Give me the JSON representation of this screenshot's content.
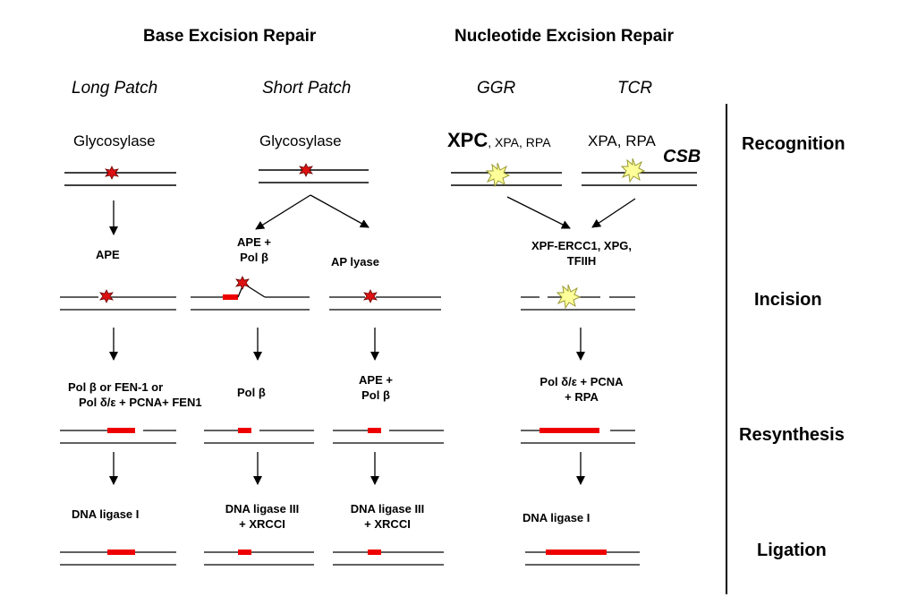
{
  "headers": {
    "ber": "Base Excision Repair",
    "ner": "Nucleotide Excision Repair"
  },
  "pathways": {
    "long_patch": "Long Patch",
    "short_patch": "Short Patch",
    "ggr": "GGR",
    "tcr": "TCR"
  },
  "recognition": {
    "glycosylase_long": "Glycosylase",
    "glycosylase_short": "Glycosylase",
    "ggr_xpc": "XPC",
    "ggr_rest": ", XPA, RPA",
    "tcr_xpa_rpa": "XPA, RPA",
    "tcr_csb": "CSB"
  },
  "incision": {
    "long_patch": "APE",
    "short_patch_ape": [
      "APE +",
      "Pol β"
    ],
    "short_patch_lyase": "AP lyase",
    "ner": [
      "XPF-ERCC1, XPG,",
      "TFIIH"
    ]
  },
  "resynthesis": {
    "long_patch": [
      "Pol β or FEN-1 or",
      "Pol δ/ε + PCNA+ FEN1"
    ],
    "short_patch_ape": "Pol β",
    "short_patch_lyase": [
      "APE +",
      "Pol β"
    ],
    "ner": [
      "Pol δ/ε + PCNA",
      "+ RPA"
    ]
  },
  "ligation": {
    "long_patch": "DNA ligase I",
    "short_patch_ape": [
      "DNA ligase III",
      "+ XRCCI"
    ],
    "short_patch_lyase": [
      "DNA ligase III",
      "+ XRCCI"
    ],
    "ner": "DNA ligase I"
  },
  "stages": {
    "recognition": "Recognition",
    "incision": "Incision",
    "resynthesis": "Resynthesis",
    "ligation": "Ligation"
  },
  "colors": {
    "patch": "#ee0000",
    "lesion_small": "#dd1111",
    "lesion_bulky": "#ffff99",
    "line": "#000000"
  }
}
